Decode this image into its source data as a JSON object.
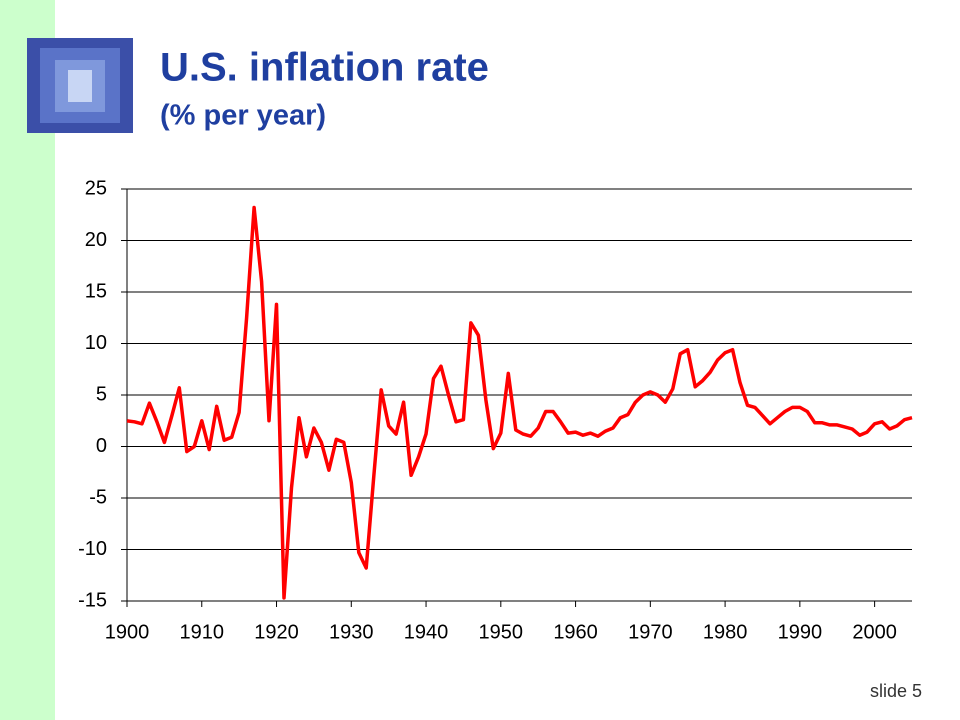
{
  "chart_data": {
    "type": "line",
    "title": "U.S. inflation rate",
    "subtitle": "(% per year)",
    "x": [
      1900,
      1901,
      1902,
      1903,
      1904,
      1905,
      1906,
      1907,
      1908,
      1909,
      1910,
      1911,
      1912,
      1913,
      1914,
      1915,
      1916,
      1917,
      1918,
      1919,
      1920,
      1921,
      1922,
      1923,
      1924,
      1925,
      1926,
      1927,
      1928,
      1929,
      1930,
      1931,
      1932,
      1933,
      1934,
      1935,
      1936,
      1937,
      1938,
      1939,
      1940,
      1941,
      1942,
      1943,
      1944,
      1945,
      1946,
      1947,
      1948,
      1949,
      1950,
      1951,
      1952,
      1953,
      1954,
      1955,
      1956,
      1957,
      1958,
      1959,
      1960,
      1961,
      1962,
      1963,
      1964,
      1965,
      1966,
      1967,
      1968,
      1969,
      1970,
      1971,
      1972,
      1973,
      1974,
      1975,
      1976,
      1977,
      1978,
      1979,
      1980,
      1981,
      1982,
      1983,
      1984,
      1985,
      1986,
      1987,
      1988,
      1989,
      1990,
      1991,
      1992,
      1993,
      1994,
      1995,
      1996,
      1997,
      1998,
      1999,
      2000,
      2001,
      2002,
      2003,
      2004,
      2005
    ],
    "values": [
      2.5,
      2.4,
      2.2,
      4.2,
      2.4,
      0.4,
      3.0,
      5.7,
      -0.5,
      0,
      2.5,
      -0.3,
      3.9,
      0.6,
      0.9,
      3.3,
      12.5,
      23.2,
      16,
      2.5,
      13.8,
      -14.7,
      -4,
      2.8,
      -1,
      1.8,
      0.4,
      -2.3,
      0.7,
      0.4,
      -3.5,
      -10.3,
      -11.8,
      -3,
      5.5,
      2,
      1.2,
      4.3,
      -2.8,
      -1,
      1.2,
      6.6,
      7.8,
      5,
      2.4,
      2.6,
      12,
      10.8,
      4.5,
      -0.2,
      1.3,
      7.1,
      1.6,
      1.2,
      1.0,
      1.8,
      3.4,
      3.4,
      2.4,
      1.3,
      1.4,
      1.1,
      1.3,
      1.0,
      1.5,
      1.8,
      2.8,
      3.1,
      4.3,
      5.0,
      5.3,
      5.0,
      4.3,
      5.6,
      9.0,
      9.4,
      5.8,
      6.4,
      7.2,
      8.4,
      9.1,
      9.4,
      6.2,
      4.0,
      3.8,
      3.0,
      2.2,
      2.8,
      3.4,
      3.8,
      3.8,
      3.4,
      2.3,
      2.3,
      2.1,
      2.1,
      1.9,
      1.7,
      1.1,
      1.4,
      2.2,
      2.4,
      1.7,
      2.0,
      2.6,
      2.8
    ],
    "color": "#ff0000",
    "xlim": [
      1900,
      2005
    ],
    "xticks": [
      1900,
      1910,
      1920,
      1930,
      1940,
      1950,
      1960,
      1970,
      1980,
      1990,
      2000
    ],
    "ylim": [
      -15,
      25
    ],
    "yticks": [
      -15,
      -10,
      -5,
      0,
      5,
      10,
      15,
      20,
      25
    ],
    "grid": true
  },
  "footer": "slide 5"
}
